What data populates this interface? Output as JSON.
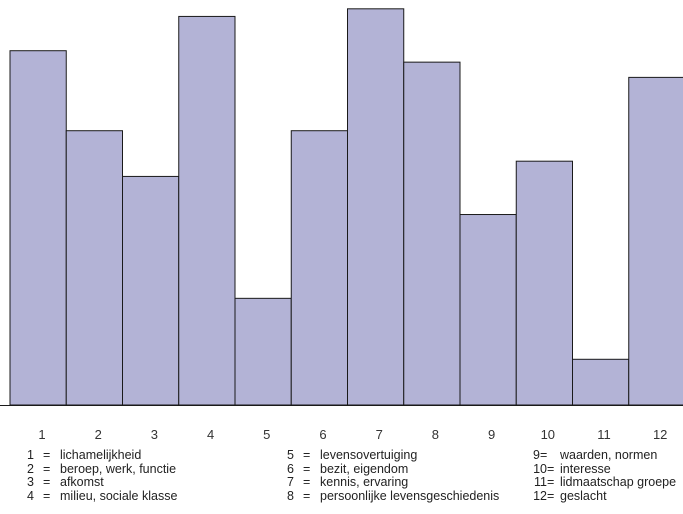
{
  "chart_data": {
    "type": "bar",
    "categories": [
      "1",
      "2",
      "3",
      "4",
      "5",
      "6",
      "7",
      "8",
      "9",
      "10",
      "11",
      "12"
    ],
    "values": [
      93,
      72,
      60,
      102,
      28,
      72,
      104,
      90,
      50,
      64,
      12,
      86
    ],
    "ylim": [
      0,
      105
    ],
    "grid": false,
    "legend_position": "bottom",
    "colors": {
      "bar_fill": "#b3b3d6",
      "bar_stroke": "#1a1a1a"
    }
  },
  "legend": {
    "columns": [
      [
        {
          "num": "1",
          "eq": "=",
          "text": "lichamelijkheid"
        },
        {
          "num": "2",
          "eq": "=",
          "text": "beroep, werk, functie"
        },
        {
          "num": "3",
          "eq": "=",
          "text": "afkomst"
        },
        {
          "num": "4",
          "eq": "=",
          "text": "milieu, sociale klasse"
        }
      ],
      [
        {
          "num": "5",
          "eq": "=",
          "text": "levensovertuiging"
        },
        {
          "num": "6",
          "eq": "=",
          "text": "bezit, eigendom"
        },
        {
          "num": "7",
          "eq": "=",
          "text": "kennis, ervaring"
        },
        {
          "num": "8",
          "eq": "=",
          "text": "persoonlijke levensgeschiedenis"
        }
      ],
      [
        {
          "num": "9",
          "eq": "=",
          "text": "waarden, normen"
        },
        {
          "num": "10",
          "eq": "=",
          "text": "interesse"
        },
        {
          "num": "11",
          "eq": "=",
          "text": "lidmaatschap groepe"
        },
        {
          "num": "12",
          "eq": "=",
          "text": "geslacht"
        }
      ]
    ]
  }
}
